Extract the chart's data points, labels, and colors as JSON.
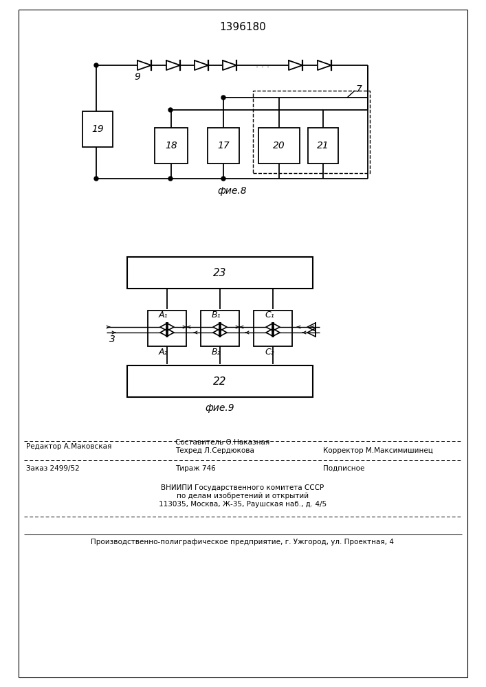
{
  "title": "1396180",
  "fig8_label": "фие.8",
  "fig9_label": "фие.9",
  "bg": "#ffffff"
}
